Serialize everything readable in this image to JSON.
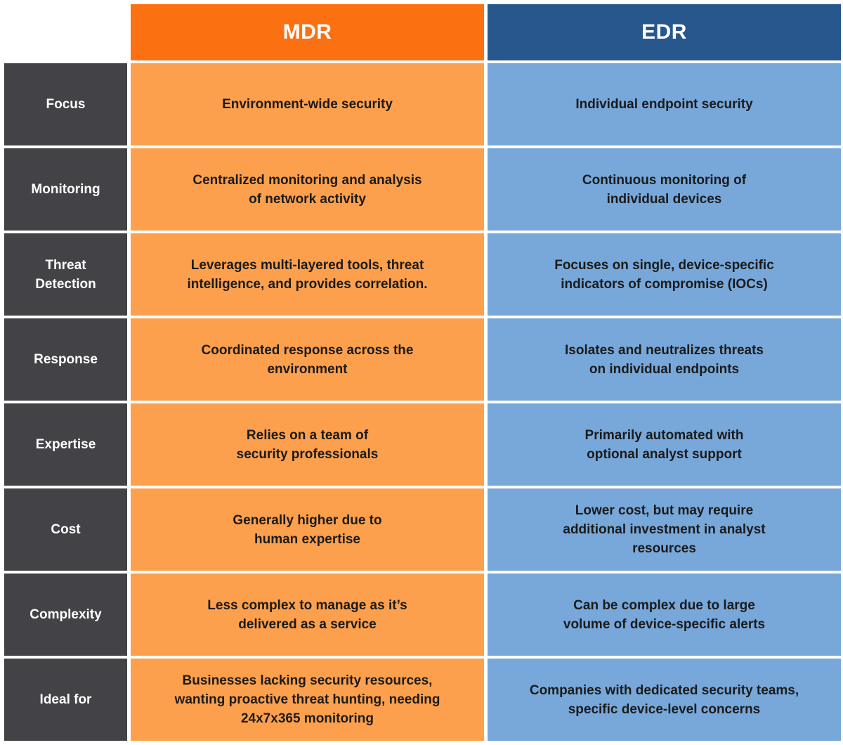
{
  "header": {
    "mdr_label": "MDR",
    "edr_label": "EDR"
  },
  "colors": {
    "mdr_header": "#fb7011",
    "mdr_cell": "#fda04d",
    "edr_header": "#27578d",
    "edr_cell": "#78a8da",
    "row_label": "#434347"
  },
  "rows": [
    {
      "label": [
        "Focus"
      ],
      "mdr": [
        "Environment-wide security"
      ],
      "edr": [
        "Individual endpoint security"
      ]
    },
    {
      "label": [
        "Monitoring"
      ],
      "mdr": [
        "Centralized monitoring and analysis",
        "of network activity"
      ],
      "edr": [
        "Continuous monitoring of",
        "individual devices"
      ]
    },
    {
      "label": [
        "Threat",
        "Detection"
      ],
      "mdr": [
        "Leverages multi-layered tools, threat",
        "intelligence, and provides correlation."
      ],
      "edr": [
        "Focuses on single, device-specific",
        "indicators of compromise (IOCs)"
      ]
    },
    {
      "label": [
        "Response"
      ],
      "mdr": [
        "Coordinated response across the",
        "environment"
      ],
      "edr": [
        "Isolates and neutralizes threats",
        "on individual endpoints"
      ]
    },
    {
      "label": [
        "Expertise"
      ],
      "mdr": [
        "Relies on a team of",
        "security professionals"
      ],
      "edr": [
        "Primarily automated with",
        "optional analyst support"
      ]
    },
    {
      "label": [
        "Cost"
      ],
      "mdr": [
        "Generally higher due to",
        "human expertise"
      ],
      "edr": [
        "Lower cost, but may require",
        "additional investment in analyst",
        "resources"
      ]
    },
    {
      "label": [
        "Complexity"
      ],
      "mdr": [
        "Less complex to manage as it’s",
        "delivered as a service"
      ],
      "edr": [
        "Can be complex due to large",
        "volume of device-specific alerts"
      ]
    },
    {
      "label": [
        "Ideal for"
      ],
      "mdr": [
        "Businesses lacking security resources,",
        "wanting proactive threat hunting, needing",
        "24x7x365 monitoring"
      ],
      "edr": [
        "Companies with dedicated security teams,",
        "specific device-level concerns"
      ]
    }
  ]
}
